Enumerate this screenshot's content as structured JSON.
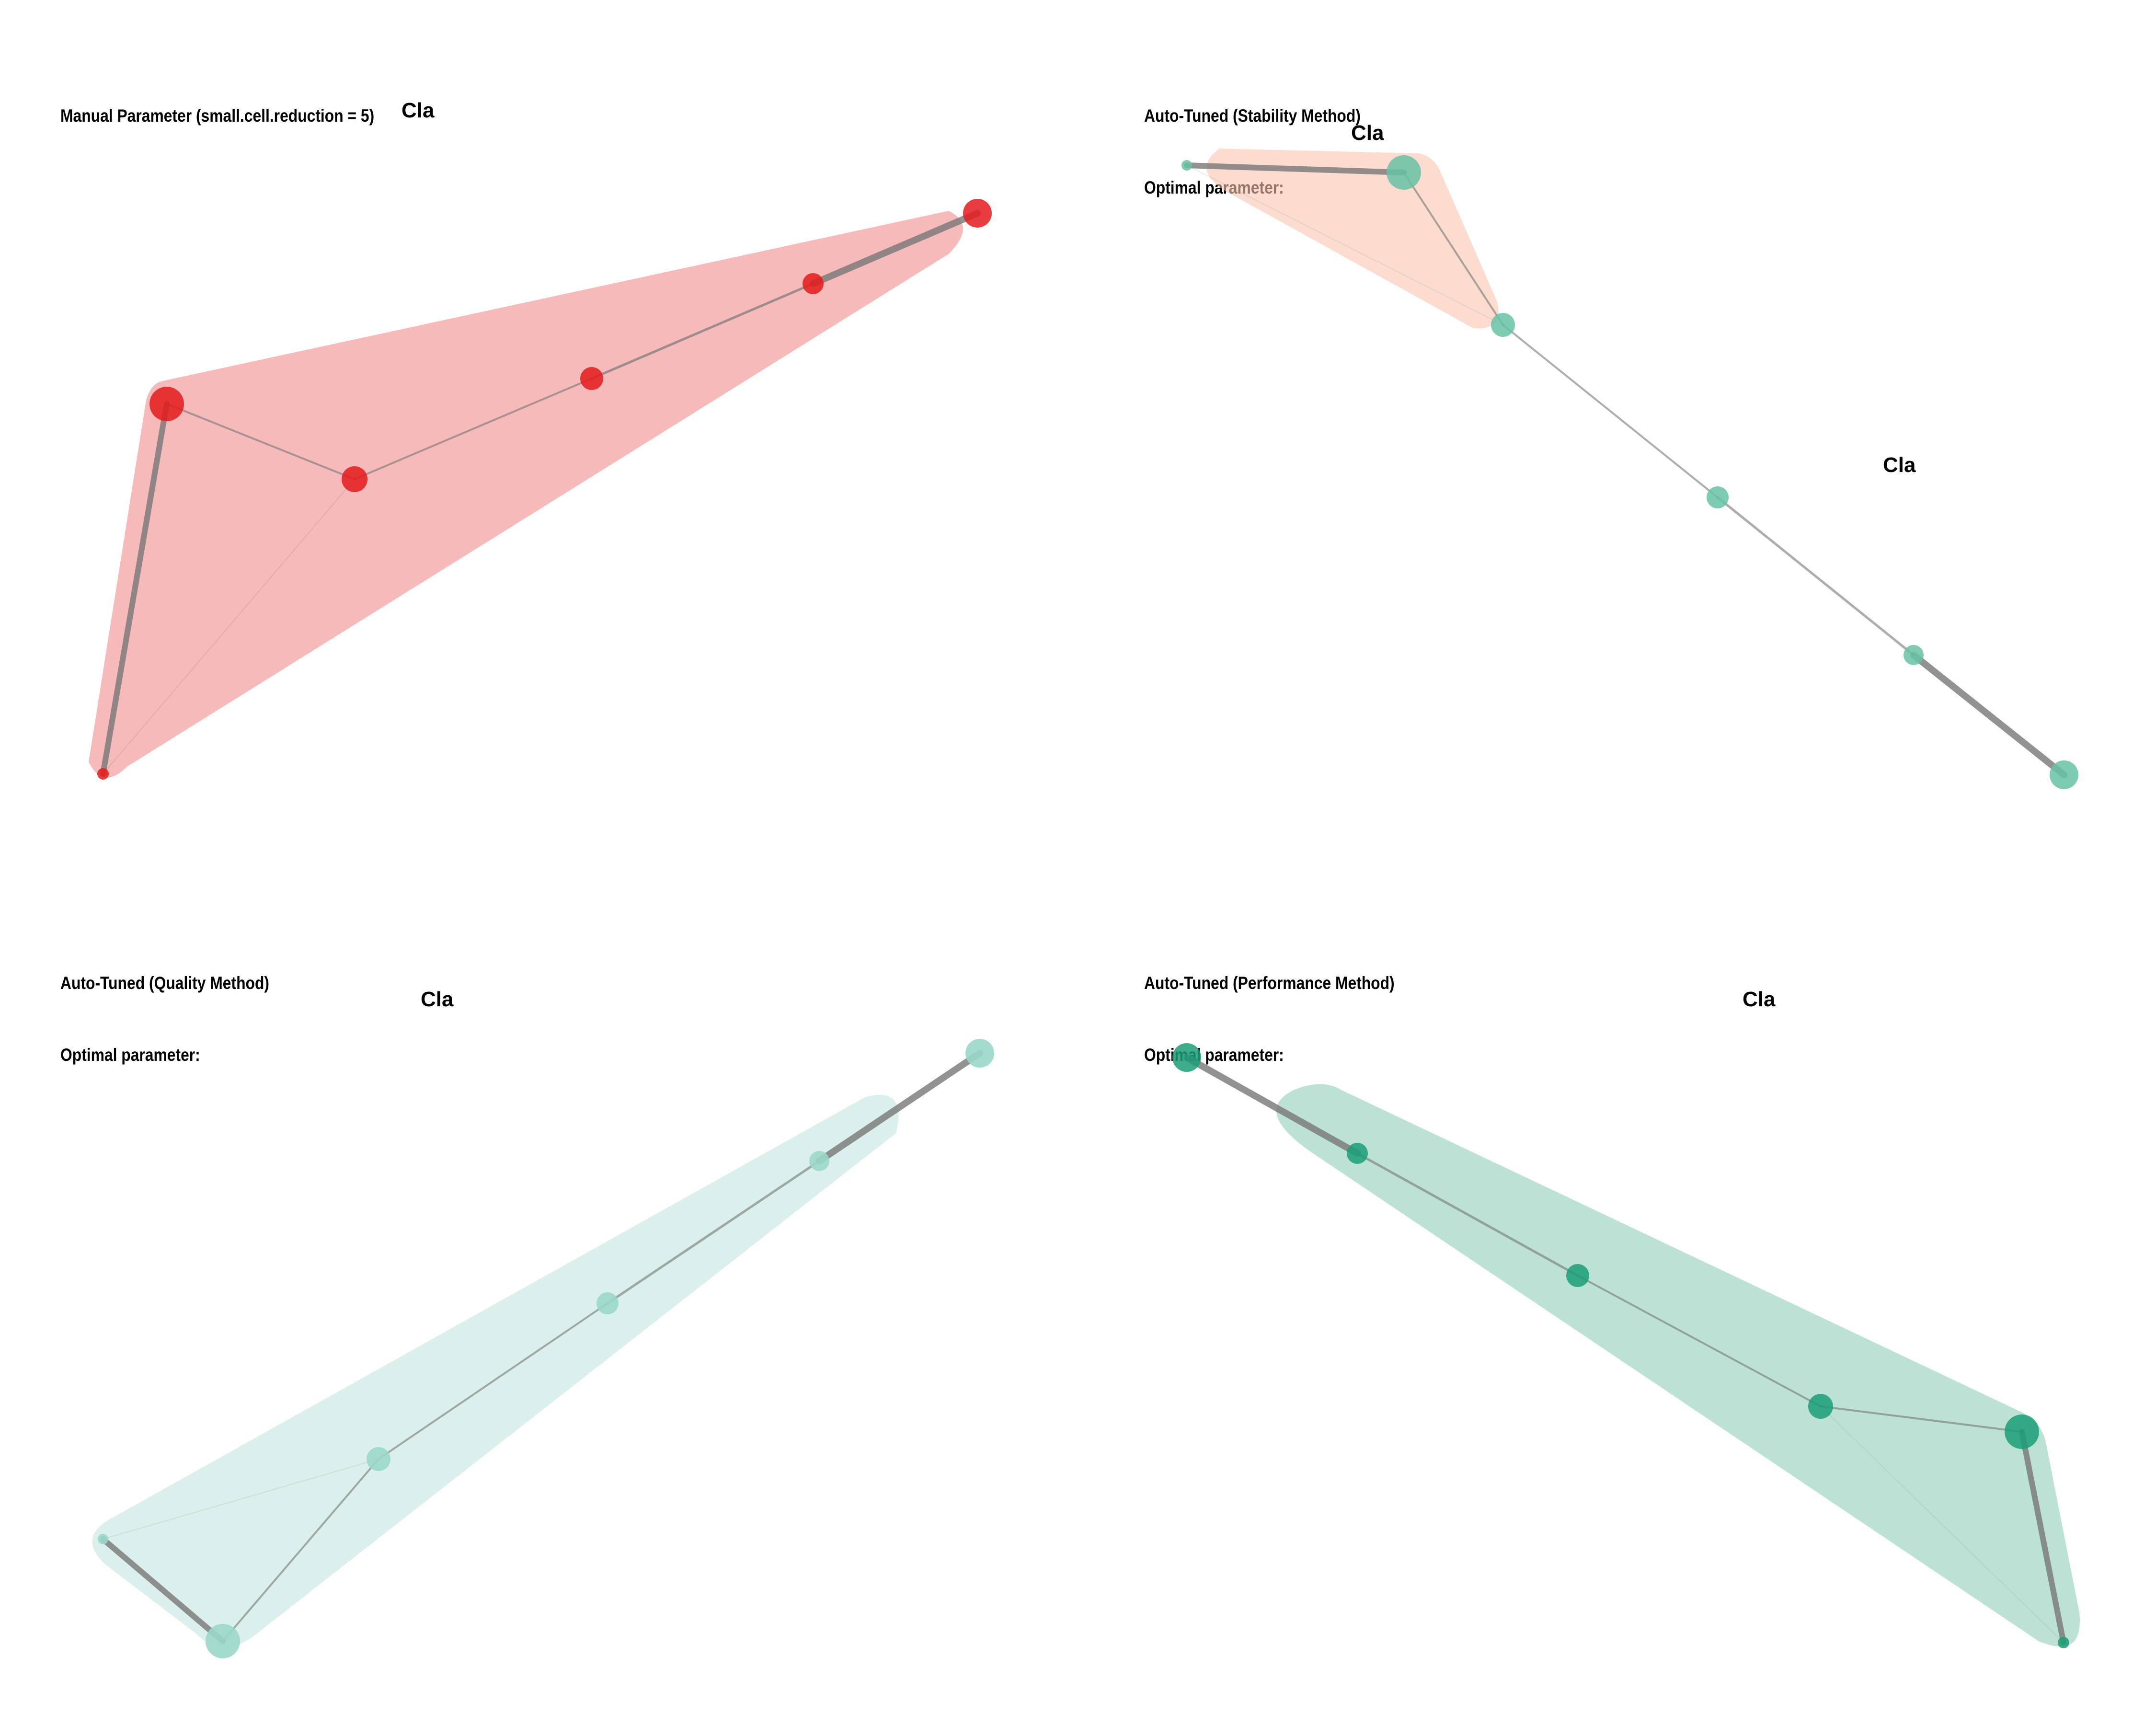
{
  "panels": [
    {
      "id": "manual",
      "title": "Manual Parameter (small.cell.reduction = 5)",
      "subtitle": "",
      "node_color": "#e41a1c",
      "hull_color": "#f4a3a3",
      "cluster_labels": [
        "Cla"
      ]
    },
    {
      "id": "stability",
      "title": "Auto-Tuned (Stability Method)",
      "subtitle": "Optimal parameter:",
      "node_color": "#66c2a5",
      "hull_color": "#fcc5b0",
      "cluster_labels": [
        "Cla",
        "Cla"
      ]
    },
    {
      "id": "quality",
      "title": "Auto-Tuned (Quality Method)",
      "subtitle": "Optimal parameter:",
      "node_color": "#99d8c9",
      "hull_color": "#cceae4",
      "cluster_labels": [
        "Cla"
      ]
    },
    {
      "id": "performance",
      "title": "Auto-Tuned (Performance Method)",
      "subtitle": "Optimal parameter:",
      "node_color": "#1b9e77",
      "hull_color": "#8fcfbb",
      "cluster_labels": [
        "Cla"
      ]
    }
  ],
  "colors": {
    "edge": "#777777",
    "background": "#ffffff"
  }
}
